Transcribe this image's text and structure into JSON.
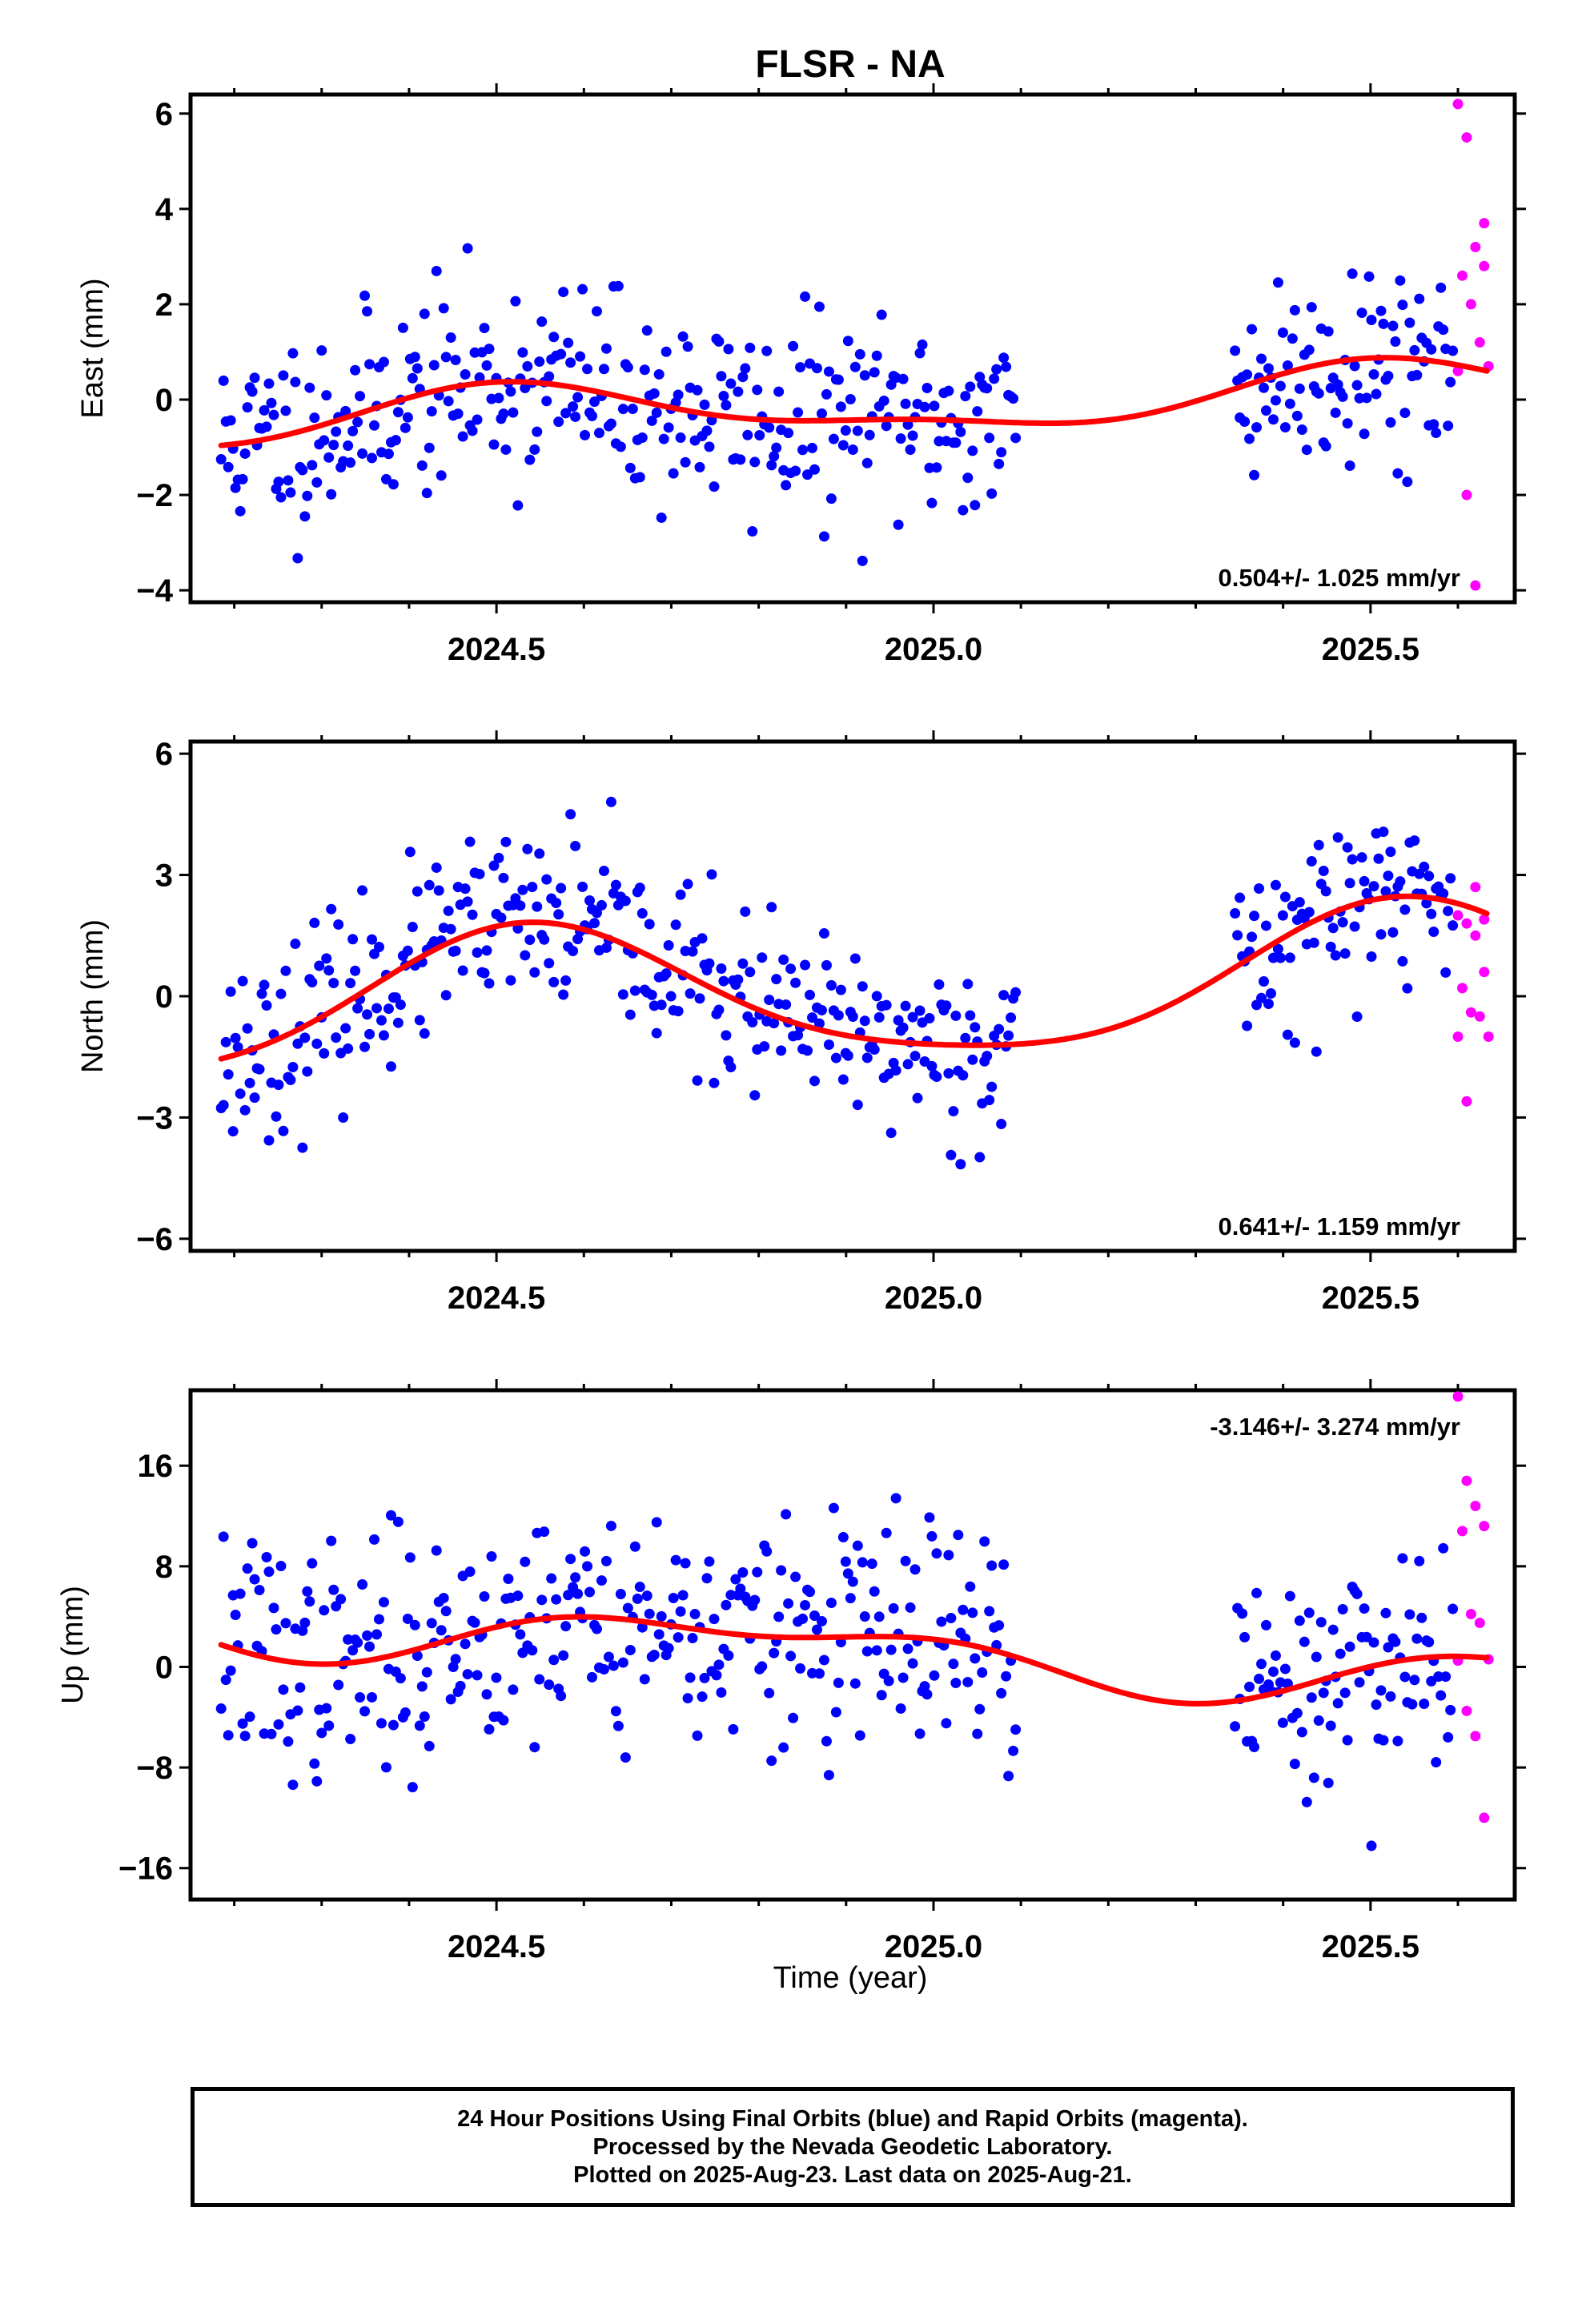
{
  "title": "FLSR - NA",
  "xlabel": "Time (year)",
  "footer": {
    "line1": "24 Hour Positions Using Final Orbits (blue) and Rapid Orbits (magenta).",
    "line2": "Processed by the Nevada Geodetic Laboratory.",
    "line3": "Plotted on 2025-Aug-23. Last data on 2025-Aug-21."
  },
  "colors": {
    "final": "#0000ff",
    "rapid": "#ff00ff",
    "fit": "#ff0000",
    "frame": "#000000"
  },
  "chart_data": [
    {
      "type": "scatter",
      "panel": "east",
      "ylabel": "East (mm)",
      "rate_label": "0.504+/- 1.025 mm/yr",
      "xlim": [
        2024.15,
        2025.665
      ],
      "ylim": [
        -4.25,
        6.4
      ],
      "xticks": [
        2024.5,
        2025.0,
        2025.5
      ],
      "xtick_labels": [
        "2024.5",
        "2025.0",
        "2025.5"
      ],
      "yticks": [
        -4,
        -2,
        0,
        2,
        4,
        6
      ],
      "ytick_labels": [
        "−4",
        "−2",
        "0",
        "2",
        "4",
        "6"
      ],
      "fit_model": {
        "a": -0.1,
        "b": 0.504,
        "c1": -0.52,
        "s1": -0.1,
        "c2": 0.2,
        "s2": -0.02,
        "t0": 2025.0
      },
      "noise_sd": 1.05,
      "seed": 11,
      "rapid_values": [
        6.2,
        5.5,
        3.2,
        2.8,
        2.6,
        2.0,
        1.2,
        0.7,
        0.6,
        -2.0,
        -3.9,
        3.7
      ]
    },
    {
      "type": "scatter",
      "panel": "north",
      "ylabel": "North (mm)",
      "rate_label": "0.641+/- 1.159 mm/yr",
      "xlim": [
        2024.15,
        2025.665
      ],
      "ylim": [
        -6.3,
        6.3
      ],
      "xticks": [
        2024.5,
        2025.0,
        2025.5
      ],
      "xtick_labels": [
        "2024.5",
        "2025.0",
        "2025.5"
      ],
      "yticks": [
        -6,
        -3,
        0,
        3,
        6
      ],
      "ytick_labels": [
        "−6",
        "−3",
        "0",
        "3",
        "6"
      ],
      "fit_model": {
        "a": 0.15,
        "b": 0.641,
        "c1": -1.62,
        "s1": -0.45,
        "c2": 0.28,
        "s2": 0.1,
        "t0": 2025.0
      },
      "noise_sd": 1.1,
      "seed": 23,
      "rapid_values": [
        2.0,
        1.8,
        1.5,
        0.6,
        0.2,
        -0.4,
        -0.5,
        -1.0,
        -1.0,
        -2.6,
        2.7,
        1.9
      ]
    },
    {
      "type": "scatter",
      "panel": "up",
      "ylabel": "Up (mm)",
      "rate_label": "-3.146+/- 3.274 mm/yr",
      "xlim": [
        2024.15,
        2025.665
      ],
      "ylim": [
        -18.5,
        22.0
      ],
      "xticks": [
        2024.5,
        2025.0,
        2025.5
      ],
      "xtick_labels": [
        "2024.5",
        "2025.0",
        "2025.5"
      ],
      "yticks": [
        -16,
        -8,
        0,
        8,
        16
      ],
      "ytick_labels": [
        "−16",
        "−8",
        "0",
        "8",
        "16"
      ],
      "fit_model": {
        "a": 1.0,
        "b": -3.146,
        "c1": 0.3,
        "s1": -1.9,
        "c2": 0.9,
        "s2": 0.6,
        "t0": 2025.0
      },
      "noise_sd": 4.6,
      "seed": 37,
      "rapid_values": [
        21.5,
        14.8,
        12.8,
        11.2,
        10.8,
        4.2,
        3.5,
        0.6,
        0.5,
        -3.5,
        -5.5,
        -12.0
      ]
    }
  ]
}
